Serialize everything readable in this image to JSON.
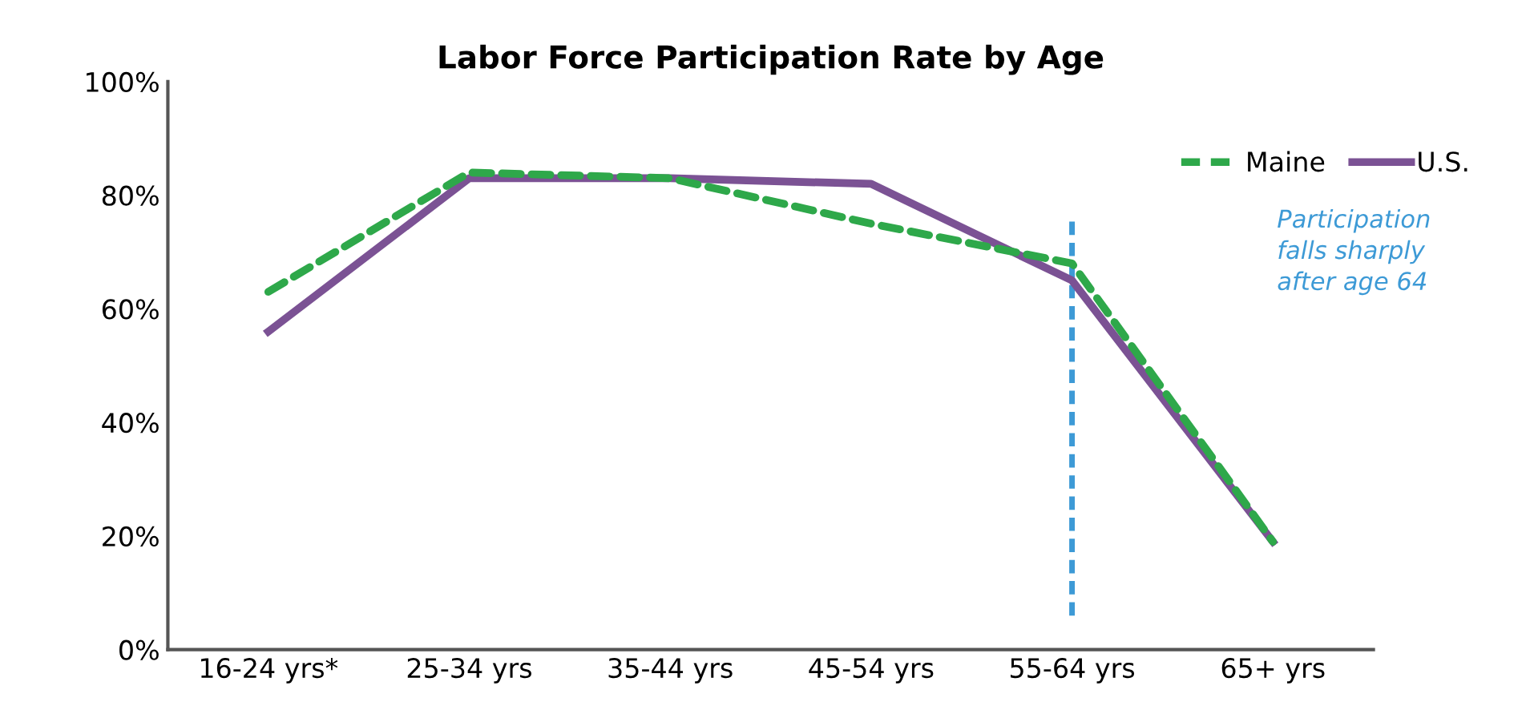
{
  "chart_data": {
    "type": "line",
    "title": "Labor Force Participation Rate by Age",
    "categories": [
      "16-24 yrs*",
      "25-34 yrs",
      "35-44 yrs",
      "45-54 yrs",
      "55-64 yrs",
      "65+ yrs"
    ],
    "series": [
      {
        "name": "Maine",
        "color": "#2ea84a",
        "line_style": "dashed",
        "values": [
          63,
          84,
          83,
          75,
          68,
          19
        ]
      },
      {
        "name": "U.S.",
        "color": "#7b5294",
        "line_style": "solid",
        "values": [
          56,
          83,
          83,
          82,
          65,
          19
        ]
      }
    ],
    "ylim": [
      0,
      100
    ],
    "yticks": [
      {
        "value": 0,
        "label": "0%"
      },
      {
        "value": 20,
        "label": "20%"
      },
      {
        "value": 40,
        "label": "40%"
      },
      {
        "value": 60,
        "label": "60%"
      },
      {
        "value": 80,
        "label": "80%"
      },
      {
        "value": 100,
        "label": "100%"
      }
    ],
    "ref_lines": [
      {
        "axis": "x",
        "value": "55-64 yrs",
        "color": "#3d9ad6",
        "line_style": "dashed"
      }
    ],
    "annotations": [
      "Participation\nfalls sharply\nafter age 64"
    ],
    "grid": false,
    "legend": "top right",
    "marker": "none"
  }
}
